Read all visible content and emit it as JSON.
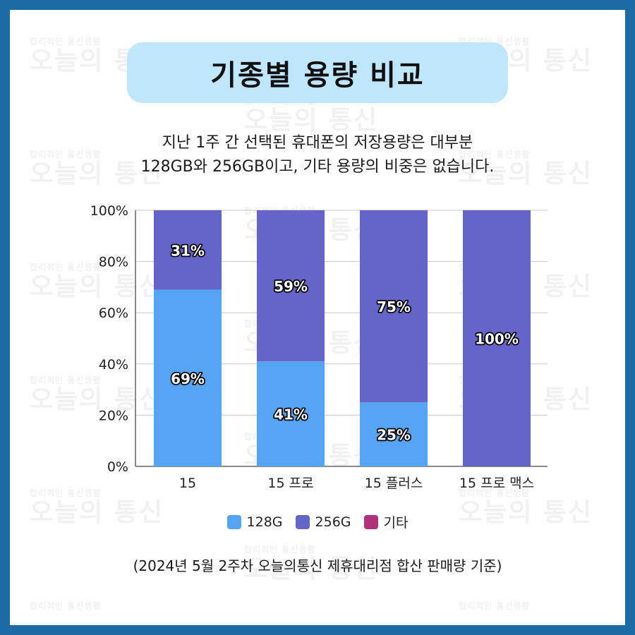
{
  "title": "기종별 용량 비교",
  "subtitle": {
    "line1": "지난 1주 간 선택된 휴대폰의 저장용량은 대부분",
    "line2": "128GB와 256GB이고, 기타 용량의 비중은 없습니다."
  },
  "watermark": {
    "small": "합리적인 통신생활",
    "big": "오늘의 통신"
  },
  "footnote": "(2024년 5월 2주차 오늘의통신 제휴대리점 합산 판매량 기준)",
  "colors": {
    "frame": "#1b6aa3",
    "title_bg": "#bfe6fb",
    "s128": "#55a5f4",
    "s256": "#6565c9",
    "other": "#b03177"
  },
  "chart_data": {
    "type": "bar",
    "stacked": true,
    "categories": [
      "15",
      "15 프로",
      "15 플러스",
      "15 프로 맥스"
    ],
    "series": [
      {
        "name": "128G",
        "values": [
          69,
          41,
          25,
          0
        ],
        "labels": [
          "69%",
          "41%",
          "25%",
          ""
        ]
      },
      {
        "name": "256G",
        "values": [
          31,
          59,
          75,
          100
        ],
        "labels": [
          "31%",
          "59%",
          "75%",
          "100%"
        ]
      },
      {
        "name": "기타",
        "values": [
          0,
          0,
          0,
          0
        ],
        "labels": [
          "",
          "",
          "",
          ""
        ]
      }
    ],
    "yticks": [
      "0%",
      "20%",
      "40%",
      "60%",
      "80%",
      "100%"
    ],
    "ylim": [
      0,
      100
    ],
    "grid": true,
    "legend": "bottom"
  }
}
